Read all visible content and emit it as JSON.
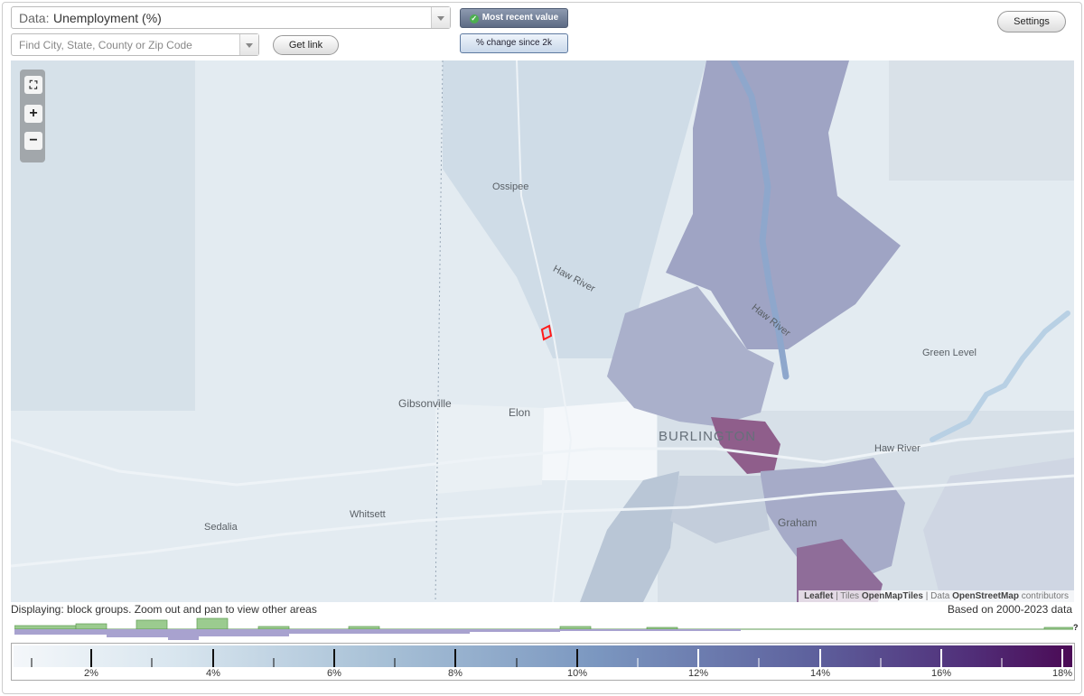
{
  "data_select": {
    "prefix": "Data:",
    "value": "Unemployment (%)"
  },
  "search": {
    "placeholder": "Find City, State, County or Zip Code"
  },
  "buttons": {
    "get_link": "Get link",
    "settings": "Settings"
  },
  "modes": {
    "most_recent": "Most recent value",
    "pct_change": "% change since 2k"
  },
  "map": {
    "labels": {
      "ossipee": "Ossipee",
      "haw_river_1": "Haw River",
      "haw_river_2": "Haw River",
      "haw_river_town": "Haw River",
      "gibsonville": "Gibsonville",
      "elon": "Elon",
      "burlington": "BURLINGTON",
      "green_level": "Green Level",
      "sedalia": "Sedalia",
      "whitsett": "Whitsett",
      "graham": "Graham"
    },
    "attribution": {
      "leaflet": "Leaflet",
      "tiles_prefix": "Tiles",
      "tiles": "OpenMapTiles",
      "data_prefix": "Data",
      "osm": "OpenStreetMap",
      "contributors": "contributors"
    },
    "colors": {
      "light": "#e3ebf1",
      "mid": "#b7c4d6",
      "dark": "#9fa4c4",
      "high": "#8f5e8b",
      "water": "#9db8d2"
    }
  },
  "status": {
    "displaying": "Displaying: block groups. Zoom out and pan to view other areas",
    "based_on": "Based on 2000-2023 data"
  },
  "histogram": {
    "unknown_marker": "?"
  },
  "legend": {
    "labels": [
      "2%",
      "4%",
      "6%",
      "8%",
      "10%",
      "12%",
      "14%",
      "16%",
      "18%"
    ]
  }
}
